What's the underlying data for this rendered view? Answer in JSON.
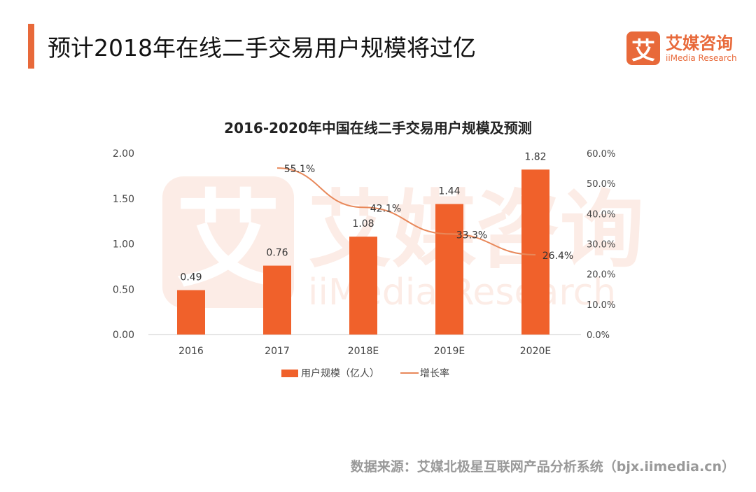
{
  "header": {
    "title": "预计2018年在线二手交易用户规模将过亿"
  },
  "logo": {
    "mark": "艾",
    "cn": "艾媒咨询",
    "en": "iiMedia Research"
  },
  "source": "数据来源：艾媒北极星互联网产品分析系统（bjx.iimedia.cn）",
  "colors": {
    "accent": "#e8693a",
    "bar": "#f0612b",
    "line": "#e8885a"
  },
  "chart_data": {
    "type": "bar+line",
    "title": "2016-2020年中国在线二手交易用户规模及预测",
    "categories": [
      "2016",
      "2017",
      "2018E",
      "2019E",
      "2020E"
    ],
    "series": [
      {
        "name": "用户规模（亿人）",
        "type": "bar",
        "axis": "left",
        "values": [
          0.49,
          0.76,
          1.08,
          1.44,
          1.82
        ],
        "labels": [
          "0.49",
          "0.76",
          "1.08",
          "1.44",
          "1.82"
        ]
      },
      {
        "name": "增长率",
        "type": "line",
        "axis": "right",
        "values": [
          null,
          55.1,
          42.1,
          33.3,
          26.4
        ],
        "labels": [
          "",
          "55.1%",
          "42.1%",
          "33.3%",
          "26.4%"
        ]
      }
    ],
    "y_left": {
      "range": [
        0,
        2
      ],
      "ticks": [
        "0.00",
        "0.50",
        "1.00",
        "1.50",
        "2.00"
      ]
    },
    "y_right": {
      "range": [
        0,
        60
      ],
      "ticks": [
        "0.0%",
        "10.0%",
        "20.0%",
        "30.0%",
        "40.0%",
        "50.0%",
        "60.0%"
      ]
    },
    "grid": false,
    "legend": "bottom",
    "watermark": "艾媒咨询 iiMedia Research"
  }
}
